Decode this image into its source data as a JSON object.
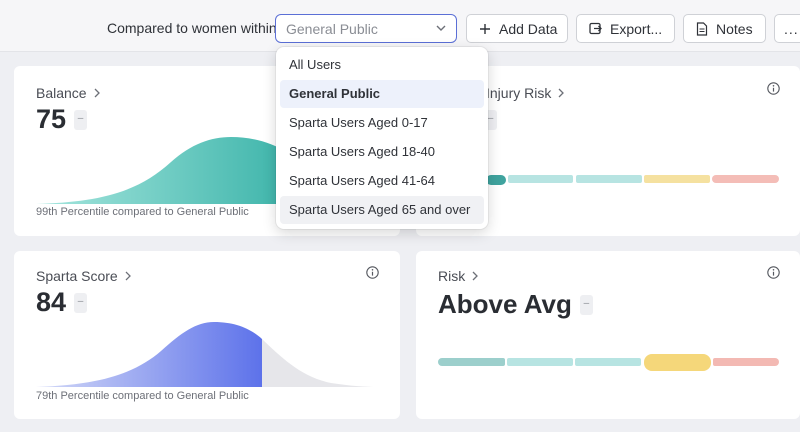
{
  "toolbar": {
    "compare_label": "Compared to women within",
    "select_value": "General Public",
    "add_data_label": "Add Data",
    "export_label": "Export...",
    "notes_label": "Notes",
    "more_label": "..."
  },
  "cards": {
    "balance": {
      "title": "Balance",
      "value": "75",
      "percentile_text": "99th Percentile compared to General Public",
      "percentile": 99
    },
    "injury_risk": {
      "title": "Injury Risk"
    },
    "sparta_score": {
      "title": "Sparta Score",
      "value": "84",
      "percentile_text": "79th Percentile compared to General Public",
      "percentile": 79
    },
    "risk": {
      "title": "Risk",
      "value": "Above Avg",
      "level_segment": 4,
      "segments": 5
    }
  },
  "dropdown": {
    "options": [
      "All Users",
      "General Public",
      "Sparta Users Aged 0-17",
      "Sparta Users Aged 18-40",
      "Sparta Users Aged 41-64",
      "Sparta Users Aged 65 and over"
    ],
    "selected_index": 1
  },
  "colors": {
    "accent": "#5b6fd6",
    "teal": "#6fd3c6",
    "blue": "#6a7df0",
    "risk_segments": [
      "#9ccfcc",
      "#b7e4e2",
      "#b7e4e2",
      "#f5dc8a",
      "#f3b9b3"
    ]
  }
}
